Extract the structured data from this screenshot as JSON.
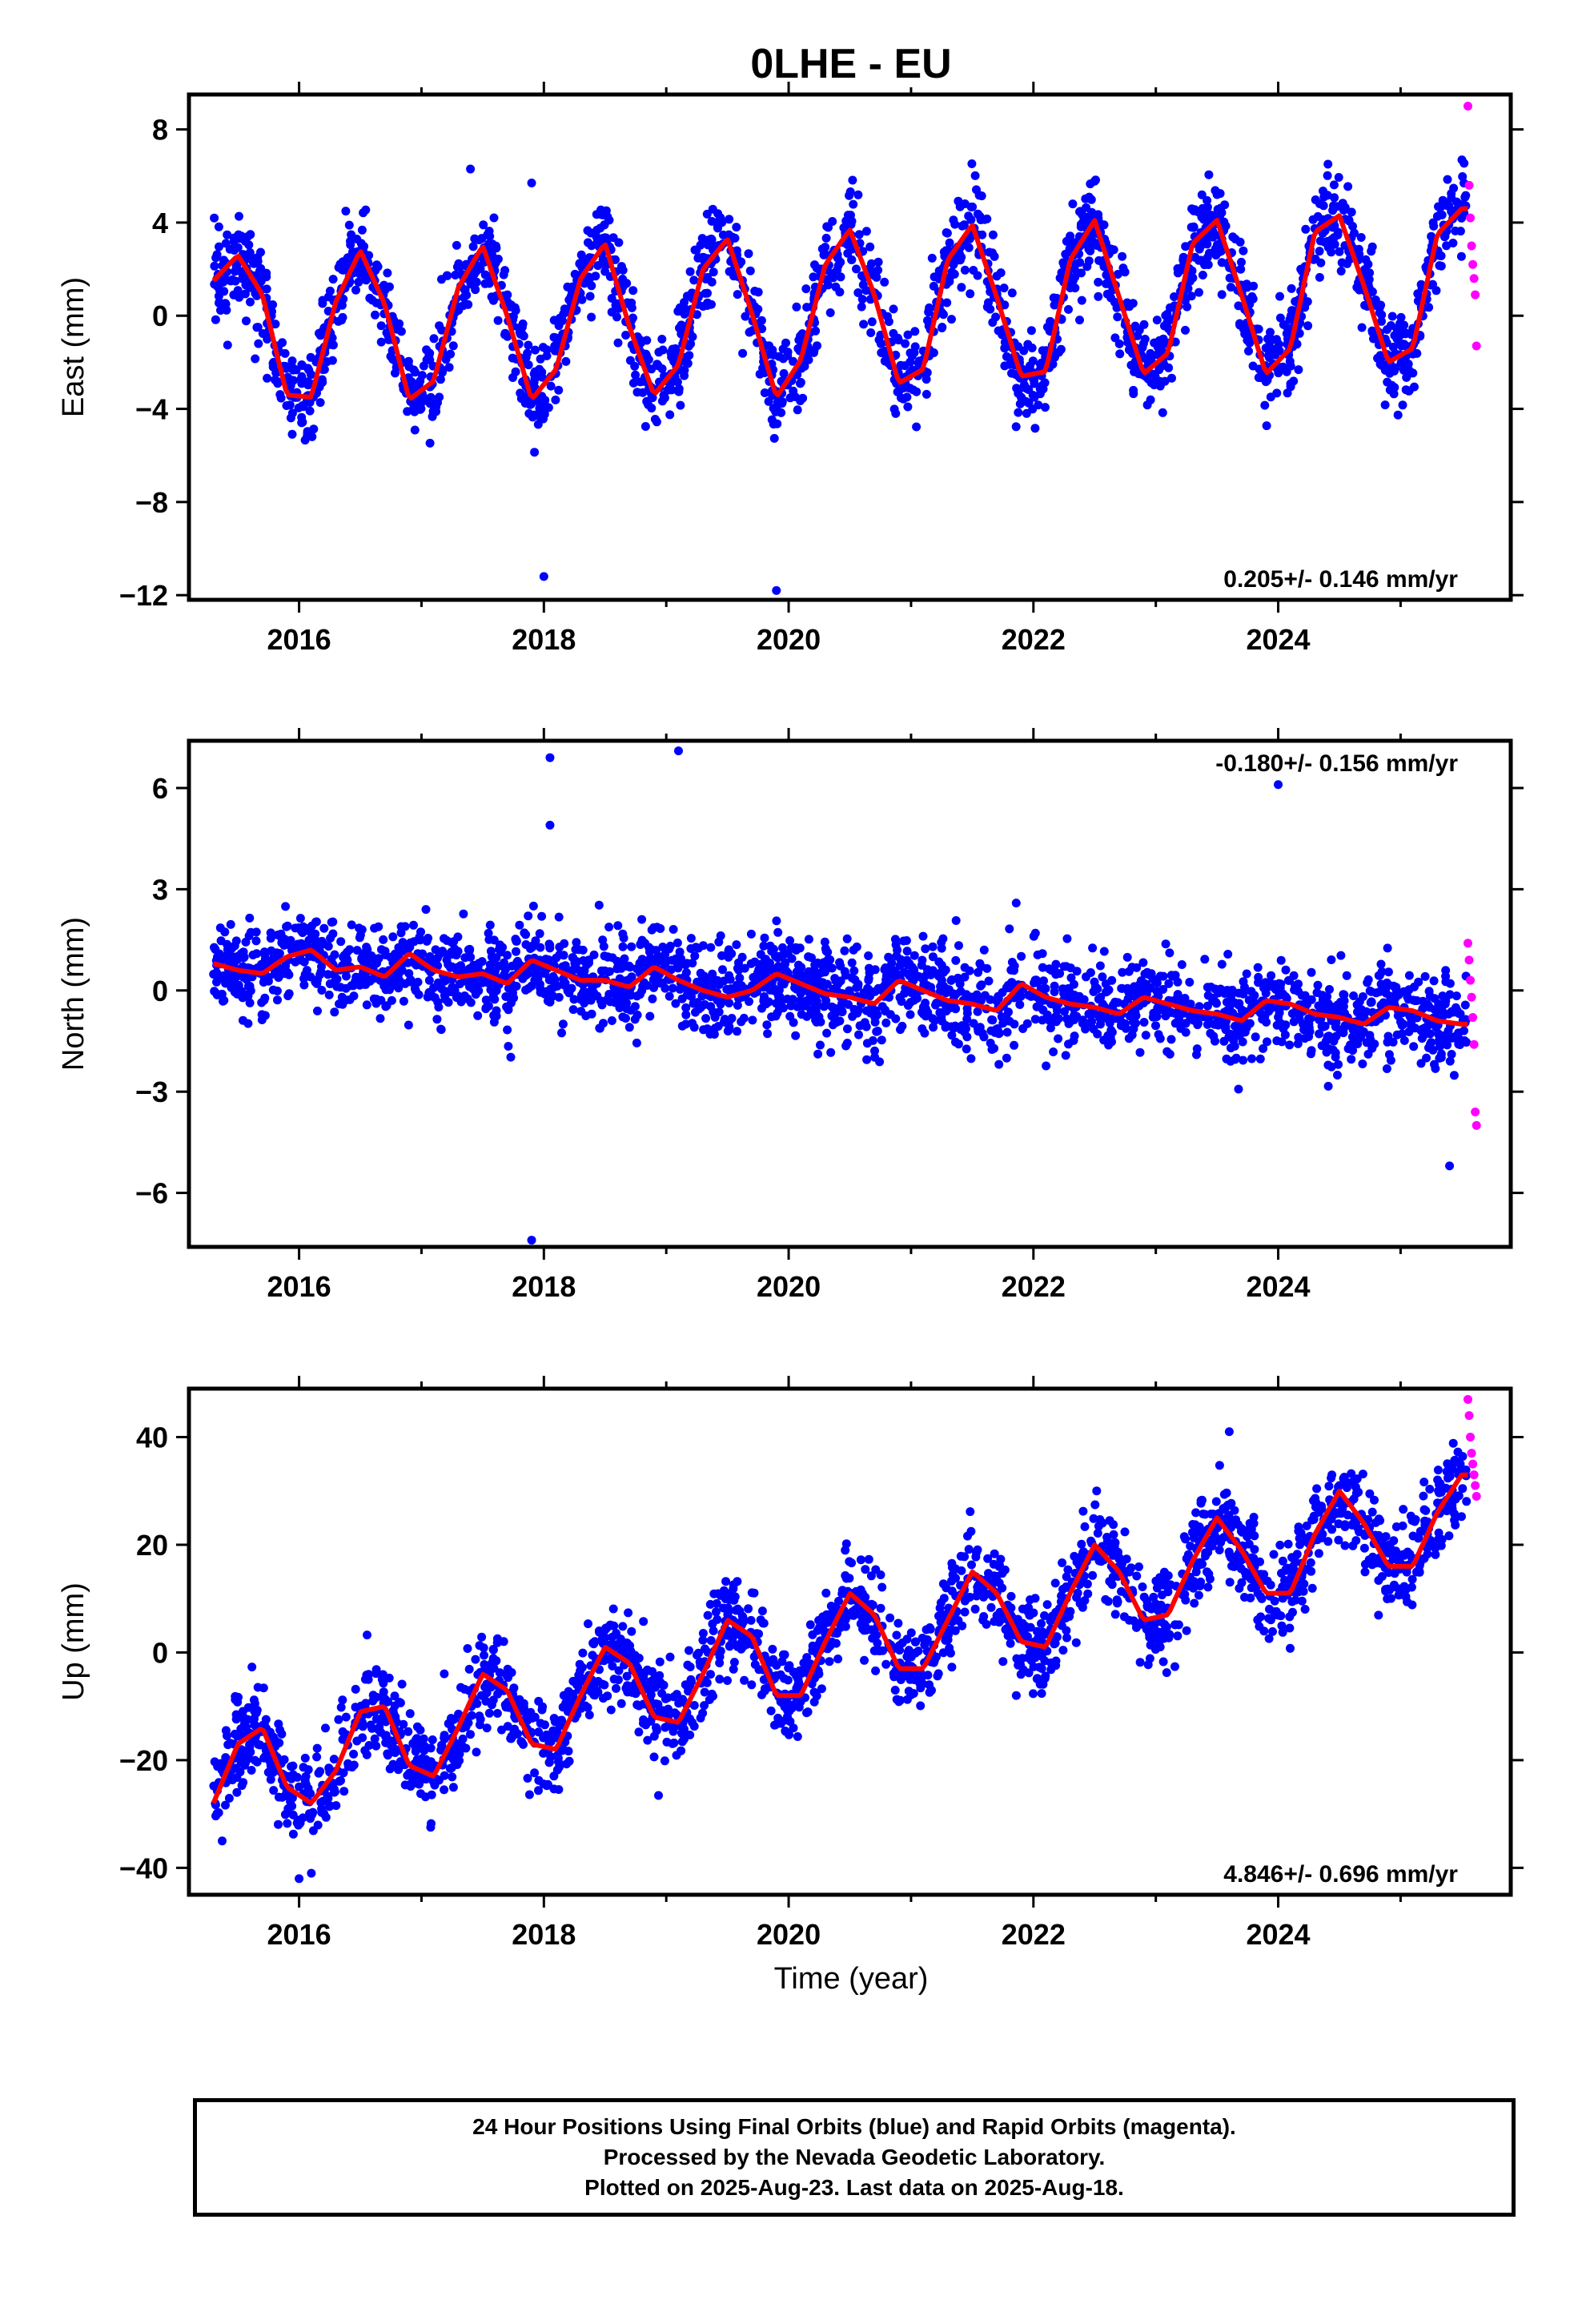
{
  "title": "0LHE - EU",
  "xlabel": "Time (year)",
  "caption": {
    "line1": "24 Hour Positions Using Final Orbits (blue) and Rapid Orbits (magenta).",
    "line2": "Processed by the Nevada Geodetic Laboratory.",
    "line3": "Plotted on 2025-Aug-23. Last data on 2025-Aug-18."
  },
  "colors": {
    "final": "#0000ff",
    "rapid": "#ff00ff",
    "model": "#ff0000"
  },
  "chart_data": [
    {
      "type": "scatter",
      "ylabel": "East (mm)",
      "rate_text": "0.205+/- 0.146 mm/yr",
      "xlim": [
        2015.1,
        2025.9
      ],
      "ylim": [
        -12.2,
        9.5
      ],
      "xticks": [
        2016,
        2018,
        2020,
        2022,
        2024
      ],
      "yticks": [
        -12,
        -8,
        -4,
        0,
        4,
        8
      ],
      "series": [
        {
          "x": [
            2015.3,
            2015.5,
            2015.7,
            2015.9,
            2016.1,
            2016.3,
            2016.5,
            2016.7,
            2016.9,
            2017.1,
            2017.3,
            2017.5,
            2017.7,
            2017.9,
            2018.1,
            2018.3,
            2018.5,
            2018.7,
            2018.9,
            2019.1,
            2019.3,
            2019.5,
            2019.7,
            2019.9,
            2020.1,
            2020.3,
            2020.5,
            2020.7,
            2020.9,
            2021.1,
            2021.3,
            2021.5,
            2021.7,
            2021.9,
            2022.1,
            2022.3,
            2022.5,
            2022.7,
            2022.9,
            2023.1,
            2023.3,
            2023.5,
            2023.7,
            2023.9,
            2024.1,
            2024.3,
            2024.5,
            2024.7,
            2024.9,
            2025.1,
            2025.3,
            2025.5
          ],
          "y": [
            1.5,
            2.6,
            0.9,
            -3.4,
            -3.5,
            0.6,
            2.8,
            0.5,
            -3.6,
            -2.8,
            1.2,
            3.0,
            0.0,
            -3.6,
            -2.3,
            1.6,
            3.1,
            -0.5,
            -3.4,
            -2.1,
            2.0,
            3.3,
            0.1,
            -3.5,
            -1.9,
            2.2,
            3.7,
            0.9,
            -2.9,
            -2.3,
            2.4,
            3.9,
            0.8,
            -2.6,
            -2.4,
            2.4,
            4.1,
            0.8,
            -2.5,
            -1.6,
            3.1,
            4.1,
            0.9,
            -2.5,
            -1.4,
            3.6,
            4.3,
            1.3,
            -2.0,
            -1.4,
            3.5,
            4.6
          ],
          "rapid_x": [
            2025.55,
            2025.56,
            2025.57,
            2025.58,
            2025.59,
            2025.6,
            2025.61,
            2025.62
          ],
          "rapid_y": [
            9.0,
            5.6,
            4.2,
            3.0,
            2.2,
            1.6,
            0.9,
            -1.3
          ],
          "outliers_x": [
            2018.0,
            2019.9,
            2017.9,
            2017.4
          ],
          "outliers_y": [
            -11.2,
            -11.8,
            5.7,
            6.3
          ]
        }
      ]
    },
    {
      "type": "scatter",
      "ylabel": "North (mm)",
      "rate_text": "-0.180+/- 0.156 mm/yr",
      "xlim": [
        2015.1,
        2025.9
      ],
      "ylim": [
        -7.6,
        7.4
      ],
      "xticks": [
        2016,
        2018,
        2020,
        2022,
        2024
      ],
      "yticks": [
        -6,
        -3,
        0,
        3,
        6
      ],
      "series": [
        {
          "x": [
            2015.3,
            2015.5,
            2015.7,
            2015.9,
            2016.1,
            2016.3,
            2016.5,
            2016.7,
            2016.9,
            2017.1,
            2017.3,
            2017.5,
            2017.7,
            2017.9,
            2018.1,
            2018.3,
            2018.5,
            2018.7,
            2018.9,
            2019.1,
            2019.3,
            2019.5,
            2019.7,
            2019.9,
            2020.1,
            2020.3,
            2020.5,
            2020.7,
            2020.9,
            2021.1,
            2021.3,
            2021.5,
            2021.7,
            2021.9,
            2022.1,
            2022.3,
            2022.5,
            2022.7,
            2022.9,
            2023.1,
            2023.3,
            2023.5,
            2023.7,
            2023.9,
            2024.1,
            2024.3,
            2024.5,
            2024.7,
            2024.9,
            2025.1,
            2025.3,
            2025.5
          ],
          "y": [
            0.8,
            0.6,
            0.5,
            1.0,
            1.2,
            0.6,
            0.7,
            0.4,
            1.1,
            0.6,
            0.4,
            0.5,
            0.2,
            0.9,
            0.6,
            0.3,
            0.3,
            0.1,
            0.7,
            0.3,
            0.0,
            -0.2,
            0.0,
            0.5,
            0.2,
            -0.1,
            -0.2,
            -0.4,
            0.3,
            0.0,
            -0.3,
            -0.4,
            -0.6,
            0.2,
            -0.2,
            -0.4,
            -0.5,
            -0.7,
            -0.2,
            -0.4,
            -0.6,
            -0.7,
            -0.9,
            -0.3,
            -0.4,
            -0.7,
            -0.8,
            -1.0,
            -0.5,
            -0.6,
            -0.9,
            -1.0
          ],
          "rapid_x": [
            2025.55,
            2025.56,
            2025.57,
            2025.58,
            2025.59,
            2025.6,
            2025.61,
            2025.62
          ],
          "rapid_y": [
            1.4,
            0.9,
            0.3,
            -0.2,
            -0.8,
            -1.6,
            -3.6,
            -4.0
          ],
          "outliers_x": [
            2018.05,
            2019.1,
            2017.9,
            2024.0,
            2018.05,
            2025.4
          ],
          "outliers_y": [
            6.9,
            7.1,
            -7.4,
            6.1,
            4.9,
            -5.2
          ]
        }
      ]
    },
    {
      "type": "scatter",
      "ylabel": "Up (mm)",
      "rate_text": "4.846+/- 0.696 mm/yr",
      "xlim": [
        2015.1,
        2025.9
      ],
      "ylim": [
        -45,
        49
      ],
      "xticks": [
        2016,
        2018,
        2020,
        2022,
        2024
      ],
      "yticks": [
        -40,
        -20,
        0,
        20,
        40
      ],
      "series": [
        {
          "x": [
            2015.3,
            2015.5,
            2015.7,
            2015.9,
            2016.1,
            2016.3,
            2016.5,
            2016.7,
            2016.9,
            2017.1,
            2017.3,
            2017.5,
            2017.7,
            2017.9,
            2018.1,
            2018.3,
            2018.5,
            2018.7,
            2018.9,
            2019.1,
            2019.3,
            2019.5,
            2019.7,
            2019.9,
            2020.1,
            2020.3,
            2020.5,
            2020.7,
            2020.9,
            2021.1,
            2021.3,
            2021.5,
            2021.7,
            2021.9,
            2022.1,
            2022.3,
            2022.5,
            2022.7,
            2022.9,
            2023.1,
            2023.3,
            2023.5,
            2023.7,
            2023.9,
            2024.1,
            2024.3,
            2024.5,
            2024.7,
            2024.9,
            2025.1,
            2025.3,
            2025.5
          ],
          "y": [
            -28,
            -17,
            -14,
            -25,
            -28,
            -22,
            -11,
            -10,
            -21,
            -23,
            -14,
            -4,
            -7,
            -17,
            -18,
            -8,
            1,
            -2,
            -12,
            -13,
            -4,
            6,
            3,
            -8,
            -8,
            2,
            11,
            7,
            -3,
            -3,
            6,
            15,
            11,
            2,
            1,
            11,
            20,
            15,
            6,
            7,
            17,
            25,
            19,
            11,
            11,
            22,
            30,
            24,
            16,
            16,
            26,
            33
          ],
          "rapid_x": [
            2025.55,
            2025.56,
            2025.57,
            2025.58,
            2025.59,
            2025.6,
            2025.61,
            2025.62
          ],
          "rapid_y": [
            47,
            44,
            40,
            37,
            35,
            33,
            31,
            29
          ],
          "outliers_x": [
            2016.0,
            2016.1,
            2023.6
          ],
          "outliers_y": [
            -42,
            -41,
            41
          ]
        }
      ]
    }
  ]
}
